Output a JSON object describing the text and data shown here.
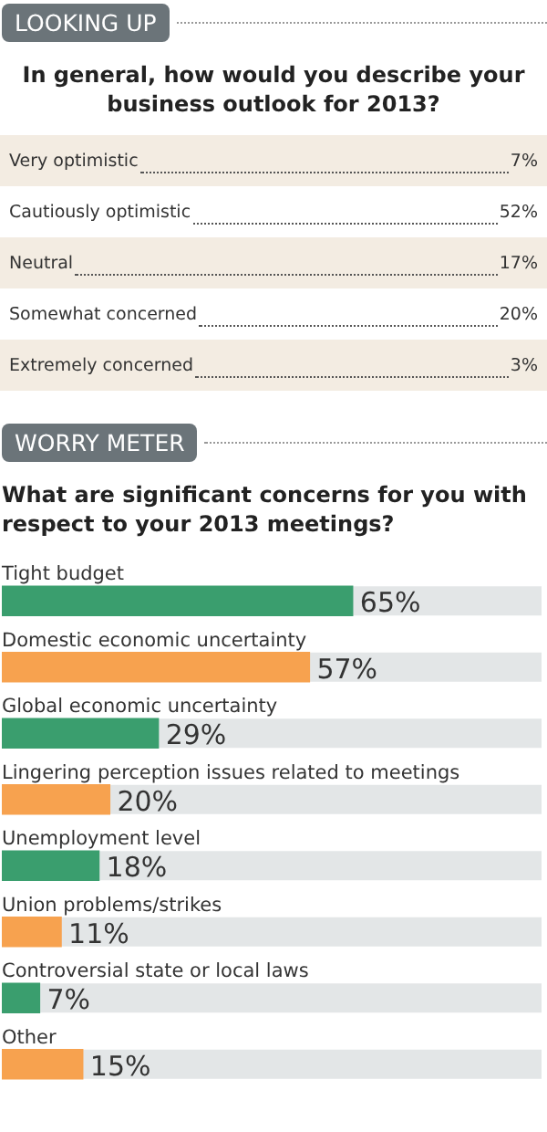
{
  "chart_data": [
    {
      "type": "other",
      "title": "LOOKING UP",
      "subtitle": "In general, how would you describe your business outlook for 2013?",
      "categories": [
        "Very optimistic",
        "Cautiously optimistic",
        "Neutral",
        "Somewhat concerned",
        "Extremely concerned"
      ],
      "value_labels": [
        "7%",
        "52%",
        "17%",
        "20%",
        "3%"
      ]
    },
    {
      "type": "bar",
      "orientation": "horizontal",
      "title": "WORRY METER",
      "subtitle": "What are significant concerns for you with respect to your 2013 meetings?",
      "categories": [
        "Tight budget",
        "Domestic economic uncertainty",
        "Global economic uncertainty",
        "Lingering perception issues related to meetings",
        "Unemployment level",
        "Union problems/strikes",
        "Controversial state or local laws",
        "Other"
      ],
      "values": [
        65,
        57,
        29,
        20,
        18,
        11,
        7,
        15
      ],
      "colors": [
        "#3a9e6e",
        "#f7a24f",
        "#3a9e6e",
        "#f7a24f",
        "#3a9e6e",
        "#f7a24f",
        "#3a9e6e",
        "#f7a24f"
      ],
      "value_labels": [
        "65%",
        "57%",
        "29%",
        "20%",
        "18%",
        "11%",
        "7%",
        "15%"
      ],
      "xlim": [
        0,
        100
      ],
      "tick_labels": false
    }
  ]
}
